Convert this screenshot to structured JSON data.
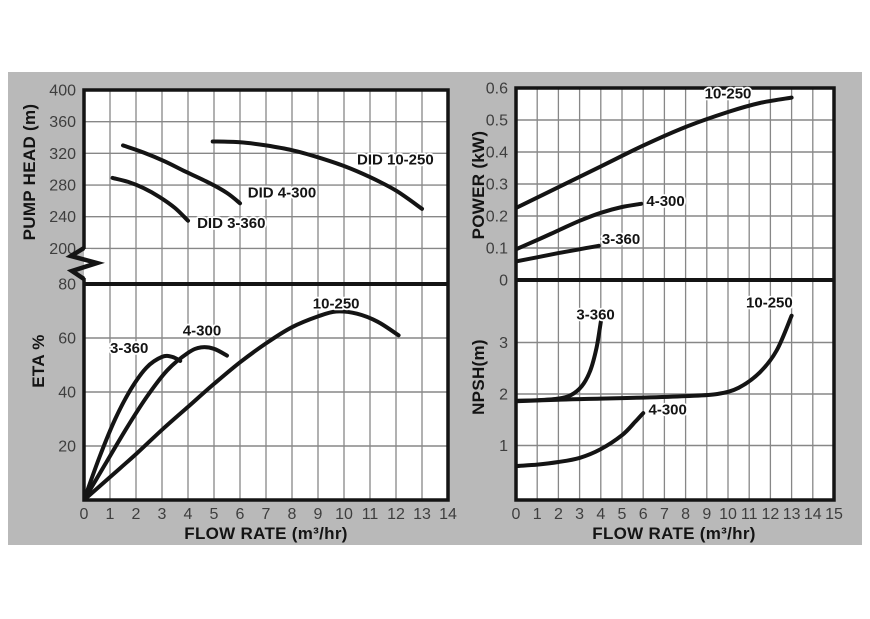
{
  "figure": {
    "bg_color": "#b9b9b9",
    "plot_bg": "#ffffff",
    "grid_color": "#878787",
    "line_color": "#141414",
    "tick_color": "#3e3e3e",
    "label_color": "#141414"
  },
  "chart_data": [
    {
      "id": "head",
      "type": "line",
      "position": "left-top",
      "ylabel": "PUMP HEAD (m)",
      "xlim": [
        0,
        14
      ],
      "ylim_shown": [
        200,
        400
      ],
      "y_axis_break": true,
      "grid": true,
      "yticks": [
        {
          "v": 400,
          "label": "400"
        },
        {
          "v": 360,
          "label": "360"
        },
        {
          "v": 320,
          "label": "320"
        },
        {
          "v": 280,
          "label": "280"
        },
        {
          "v": 240,
          "label": "240"
        },
        {
          "v": 200,
          "label": "200"
        }
      ],
      "series": [
        {
          "name": "DID 3-360",
          "label": "DID 3-360",
          "label_at": [
            4.35,
            226
          ],
          "points": [
            [
              1.1,
              289
            ],
            [
              1.7,
              284
            ],
            [
              2.3,
              276
            ],
            [
              2.9,
              265
            ],
            [
              3.5,
              251
            ],
            [
              4.0,
              235
            ]
          ]
        },
        {
          "name": "DID 4-300",
          "label": "DID 4-300",
          "label_at": [
            6.3,
            264
          ],
          "points": [
            [
              1.5,
              330
            ],
            [
              2.3,
              321
            ],
            [
              3.1,
              310
            ],
            [
              3.9,
              297
            ],
            [
              4.8,
              283
            ],
            [
              5.5,
              270
            ],
            [
              6.0,
              257
            ]
          ]
        },
        {
          "name": "DID 10-250",
          "label": "DID 10-250",
          "label_at": [
            10.5,
            306
          ],
          "points": [
            [
              4.95,
              335
            ],
            [
              6,
              334
            ],
            [
              7,
              330
            ],
            [
              8,
              324
            ],
            [
              9,
              315
            ],
            [
              10,
              304
            ],
            [
              11,
              290
            ],
            [
              12,
              273
            ],
            [
              13,
              250
            ]
          ]
        }
      ]
    },
    {
      "id": "eta",
      "type": "line",
      "position": "left-bottom",
      "ylabel": "ETA %",
      "xlabel": "FLOW RATE (m³/hr)",
      "xlim": [
        0,
        14
      ],
      "ylim": [
        0,
        80
      ],
      "grid": true,
      "xticks": [
        "0",
        "1",
        "2",
        "3",
        "4",
        "5",
        "6",
        "7",
        "8",
        "9",
        "10",
        "11",
        "12",
        "13",
        "14"
      ],
      "yticks": [
        {
          "v": 80,
          "label": "80"
        },
        {
          "v": 60,
          "label": "60"
        },
        {
          "v": 40,
          "label": "40"
        },
        {
          "v": 20,
          "label": "20"
        }
      ],
      "series": [
        {
          "name": "3-360",
          "label": "3-360",
          "label_at": [
            1.0,
            54.5
          ],
          "points": [
            [
              0,
              0
            ],
            [
              0.6,
              16
            ],
            [
              1.2,
              30
            ],
            [
              1.8,
              41
            ],
            [
              2.4,
              49
            ],
            [
              3.0,
              53
            ],
            [
              3.4,
              53
            ],
            [
              3.7,
              51.5
            ]
          ]
        },
        {
          "name": "4-300",
          "label": "4-300",
          "label_at": [
            3.8,
            61
          ],
          "points": [
            [
              0,
              0
            ],
            [
              0.8,
              13
            ],
            [
              1.6,
              26
            ],
            [
              2.4,
              38
            ],
            [
              3.2,
              48
            ],
            [
              4.0,
              54.5
            ],
            [
              4.5,
              56.5
            ],
            [
              5.0,
              56
            ],
            [
              5.5,
              53.5
            ]
          ]
        },
        {
          "name": "10-250",
          "label": "10-250",
          "label_at": [
            8.8,
            71
          ],
          "points": [
            [
              0,
              0
            ],
            [
              1,
              8.5
            ],
            [
              2,
              17
            ],
            [
              3,
              26
            ],
            [
              4,
              34.5
            ],
            [
              5,
              43
            ],
            [
              6,
              51
            ],
            [
              7,
              58
            ],
            [
              8,
              64
            ],
            [
              9,
              68
            ],
            [
              9.7,
              69.8
            ],
            [
              10.5,
              69
            ],
            [
              11.3,
              66
            ],
            [
              12.1,
              61
            ]
          ]
        }
      ]
    },
    {
      "id": "power",
      "type": "line",
      "position": "right-top",
      "ylabel": "POWER (kW)",
      "xlim": [
        0,
        15
      ],
      "ylim": [
        0,
        0.6
      ],
      "grid": true,
      "yticks": [
        {
          "v": 0.6,
          "label": "0.6"
        },
        {
          "v": 0.5,
          "label": "0.5"
        },
        {
          "v": 0.4,
          "label": "0.4"
        },
        {
          "v": 0.3,
          "label": "0.3"
        },
        {
          "v": 0.2,
          "label": "0.2"
        },
        {
          "v": 0.1,
          "label": "0.1"
        },
        {
          "v": 0,
          "label": "0"
        }
      ],
      "series": [
        {
          "name": "10-250",
          "label": "10-250",
          "label_at": [
            8.9,
            0.567
          ],
          "points": [
            [
              0,
              0.225
            ],
            [
              2,
              0.29
            ],
            [
              4,
              0.355
            ],
            [
              6,
              0.42
            ],
            [
              8,
              0.478
            ],
            [
              10,
              0.525
            ],
            [
              11.5,
              0.553
            ],
            [
              13,
              0.57
            ]
          ]
        },
        {
          "name": "4-300",
          "label": "4-300",
          "label_at": [
            6.15,
            0.232
          ],
          "points": [
            [
              0,
              0.096
            ],
            [
              1,
              0.125
            ],
            [
              2,
              0.155
            ],
            [
              3,
              0.185
            ],
            [
              4,
              0.21
            ],
            [
              5,
              0.228
            ],
            [
              5.9,
              0.238
            ]
          ]
        },
        {
          "name": "3-360",
          "label": "3-360",
          "label_at": [
            4.05,
            0.112
          ],
          "points": [
            [
              0,
              0.058
            ],
            [
              1,
              0.071
            ],
            [
              2,
              0.084
            ],
            [
              3,
              0.096
            ],
            [
              3.9,
              0.107
            ]
          ]
        }
      ]
    },
    {
      "id": "npsh",
      "type": "line",
      "position": "right-bottom",
      "ylabel": "NPSH(m)",
      "xlabel": "FLOW RATE (m³/hr)",
      "xlim": [
        0,
        15
      ],
      "ylim": [
        0,
        4.2
      ],
      "grid": true,
      "xticks": [
        "0",
        "1",
        "2",
        "3",
        "4",
        "5",
        "6",
        "7",
        "8",
        "9",
        "10",
        "11",
        "12",
        "13",
        "14",
        "15"
      ],
      "yticks": [
        {
          "v": 3,
          "label": "3"
        },
        {
          "v": 2,
          "label": "2"
        },
        {
          "v": 1,
          "label": "1"
        }
      ],
      "series": [
        {
          "name": "3-360",
          "label": "3-360",
          "label_at": [
            2.85,
            3.45
          ],
          "points": [
            [
              0,
              1.87
            ],
            [
              1,
              1.88
            ],
            [
              2,
              1.91
            ],
            [
              2.6,
              1.98
            ],
            [
              3.1,
              2.15
            ],
            [
              3.5,
              2.45
            ],
            [
              3.8,
              2.9
            ],
            [
              4.0,
              3.4
            ]
          ]
        },
        {
          "name": "10-250",
          "label": "10-250",
          "label_at": [
            10.85,
            3.68
          ],
          "points": [
            [
              0,
              1.86
            ],
            [
              2,
              1.89
            ],
            [
              4,
              1.91
            ],
            [
              6,
              1.93
            ],
            [
              8,
              1.96
            ],
            [
              9.5,
              2.0
            ],
            [
              10.5,
              2.12
            ],
            [
              11.5,
              2.42
            ],
            [
              12.3,
              2.85
            ],
            [
              13,
              3.52
            ]
          ]
        },
        {
          "name": "4-300",
          "label": "4-300",
          "label_at": [
            6.25,
            1.6
          ],
          "points": [
            [
              0,
              0.6
            ],
            [
              1,
              0.63
            ],
            [
              2,
              0.68
            ],
            [
              3,
              0.76
            ],
            [
              4,
              0.93
            ],
            [
              5,
              1.2
            ],
            [
              5.6,
              1.45
            ],
            [
              6,
              1.63
            ]
          ]
        }
      ]
    }
  ]
}
